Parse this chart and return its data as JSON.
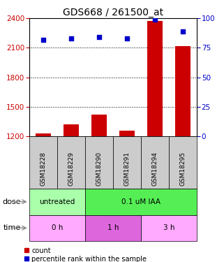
{
  "title": "GDS668 / 261500_at",
  "samples": [
    "GSM18228",
    "GSM18229",
    "GSM18290",
    "GSM18291",
    "GSM18294",
    "GSM18295"
  ],
  "bar_values": [
    1230,
    1320,
    1420,
    1255,
    2370,
    2120
  ],
  "dot_values": [
    82,
    83,
    84,
    83,
    99,
    89
  ],
  "ylim_left": [
    1200,
    2400
  ],
  "ylim_right": [
    0,
    100
  ],
  "yticks_left": [
    1200,
    1500,
    1800,
    2100,
    2400
  ],
  "yticks_right": [
    0,
    25,
    50,
    75,
    100
  ],
  "bar_color": "#cc0000",
  "dot_color": "#0000cc",
  "dot_size": 18,
  "bar_width": 0.55,
  "dose_labels": [
    {
      "label": "untreated",
      "start": 0,
      "end": 2,
      "color": "#aaffaa"
    },
    {
      "label": "0.1 uM IAA",
      "start": 2,
      "end": 6,
      "color": "#55ee55"
    }
  ],
  "time_labels": [
    {
      "label": "0 h",
      "start": 0,
      "end": 2,
      "color": "#ffaaff"
    },
    {
      "label": "1 h",
      "start": 2,
      "end": 4,
      "color": "#dd66dd"
    },
    {
      "label": "3 h",
      "start": 4,
      "end": 6,
      "color": "#ffaaff"
    }
  ],
  "dose_row_label": "dose",
  "time_row_label": "time",
  "legend_items": [
    {
      "label": "count",
      "color": "#cc0000",
      "marker": "s"
    },
    {
      "label": "percentile rank within the sample",
      "color": "#0000cc",
      "marker": "s"
    }
  ],
  "grid_color": "black",
  "background_color": "#ffffff",
  "label_color_left": "#cc0000",
  "label_color_right": "#0000cc",
  "title_fontsize": 10,
  "tick_fontsize": 7.5,
  "sample_fontsize": 6.5
}
